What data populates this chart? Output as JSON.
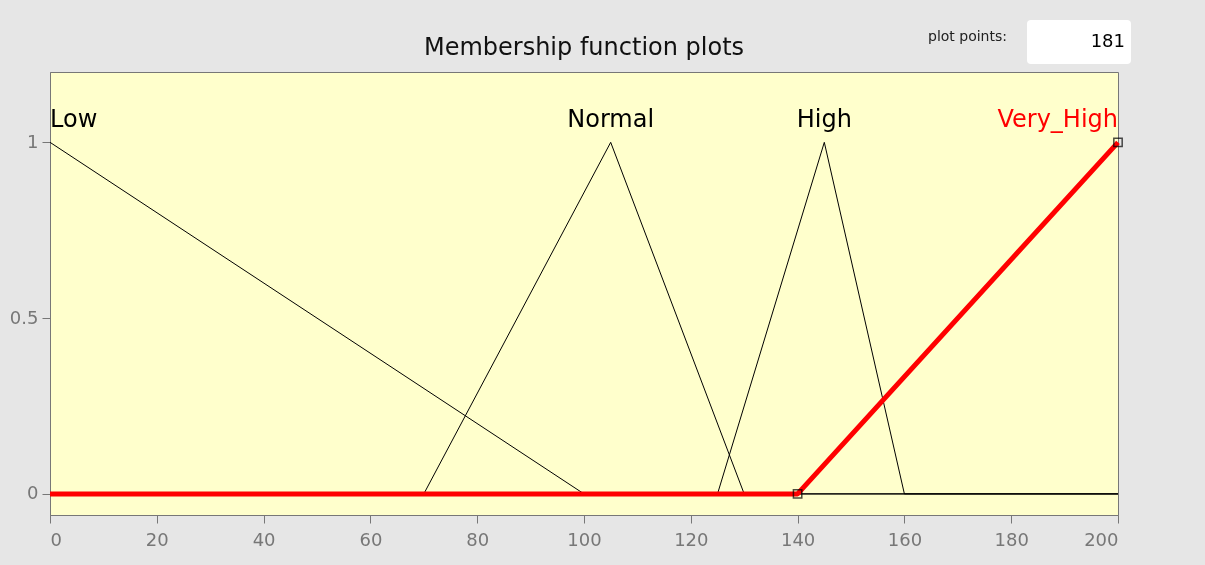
{
  "chart_data": {
    "type": "line",
    "title": "Membership function plots",
    "annotations": [
      "plot points:",
      "181"
    ],
    "xlim": [
      0,
      200
    ],
    "xticks": [
      0,
      20,
      40,
      60,
      80,
      100,
      120,
      140,
      160,
      180,
      200
    ],
    "ylim": [
      -0.06,
      1.2
    ],
    "yticks": [
      0,
      0.5,
      1
    ],
    "grid": false,
    "legend": false,
    "series": [
      {
        "name": "Low",
        "color": "#000000",
        "x": [
          0,
          100,
          200
        ],
        "values": [
          1,
          0,
          0
        ]
      },
      {
        "name": "Normal",
        "color": "#000000",
        "x": [
          0,
          70,
          105,
          130,
          200
        ],
        "values": [
          0,
          0,
          1,
          0,
          0
        ]
      },
      {
        "name": "High",
        "color": "#000000",
        "x": [
          0,
          125,
          145,
          160,
          200
        ],
        "values": [
          0,
          0,
          1,
          0,
          0
        ]
      },
      {
        "name": "Very_High",
        "color": "#ff0000",
        "x": [
          0,
          140,
          200
        ],
        "values": [
          0,
          0,
          1
        ],
        "marker": "square"
      }
    ]
  }
}
